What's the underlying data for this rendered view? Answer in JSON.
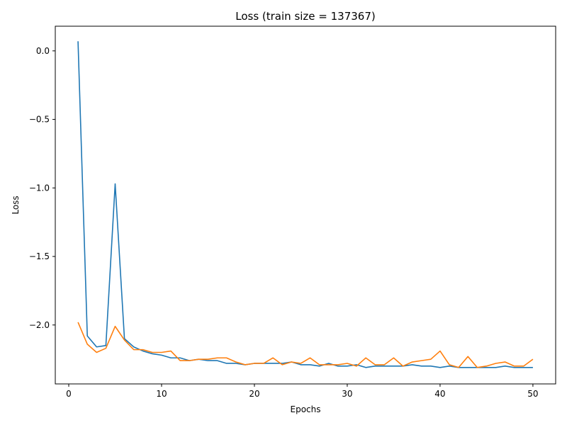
{
  "chart_data": {
    "type": "line",
    "title": "Loss (train size = 137367)",
    "xlabel": "Epochs",
    "ylabel": "Loss",
    "xlim": [
      -1.45,
      52.45
    ],
    "ylim": [
      -2.43,
      0.18
    ],
    "xticks": [
      0,
      10,
      20,
      30,
      40,
      50
    ],
    "yticks": [
      0.0,
      -0.5,
      -1.0,
      -1.5,
      -2.0
    ],
    "ytick_labels": [
      "0.0",
      "−0.5",
      "−1.0",
      "−1.5",
      "−2.0"
    ],
    "grid": false,
    "x": [
      1,
      2,
      3,
      4,
      5,
      6,
      7,
      8,
      9,
      10,
      11,
      12,
      13,
      14,
      15,
      16,
      17,
      18,
      19,
      20,
      21,
      22,
      23,
      24,
      25,
      26,
      27,
      28,
      29,
      30,
      31,
      32,
      33,
      34,
      35,
      36,
      37,
      38,
      39,
      40,
      41,
      42,
      43,
      44,
      45,
      46,
      47,
      48,
      49,
      50
    ],
    "series": [
      {
        "color": "#1f77b4",
        "values": [
          0.07,
          -2.08,
          -2.16,
          -2.15,
          -0.97,
          -2.1,
          -2.16,
          -2.19,
          -2.21,
          -2.22,
          -2.24,
          -2.24,
          -2.26,
          -2.25,
          -2.26,
          -2.26,
          -2.28,
          -2.28,
          -2.29,
          -2.28,
          -2.28,
          -2.28,
          -2.28,
          -2.27,
          -2.29,
          -2.29,
          -2.3,
          -2.28,
          -2.3,
          -2.3,
          -2.29,
          -2.31,
          -2.3,
          -2.3,
          -2.3,
          -2.3,
          -2.29,
          -2.3,
          -2.3,
          -2.31,
          -2.3,
          -2.31,
          -2.31,
          -2.31,
          -2.31,
          -2.31,
          -2.3,
          -2.31,
          -2.31,
          -2.31
        ]
      },
      {
        "color": "#ff7f0e",
        "values": [
          -1.98,
          -2.14,
          -2.2,
          -2.17,
          -2.01,
          -2.11,
          -2.18,
          -2.18,
          -2.2,
          -2.2,
          -2.19,
          -2.26,
          -2.26,
          -2.25,
          -2.25,
          -2.24,
          -2.24,
          -2.27,
          -2.29,
          -2.28,
          -2.28,
          -2.24,
          -2.29,
          -2.27,
          -2.28,
          -2.24,
          -2.29,
          -2.29,
          -2.29,
          -2.28,
          -2.3,
          -2.24,
          -2.29,
          -2.29,
          -2.24,
          -2.3,
          -2.27,
          -2.26,
          -2.25,
          -2.19,
          -2.29,
          -2.31,
          -2.23,
          -2.31,
          -2.3,
          -2.28,
          -2.27,
          -2.3,
          -2.3,
          -2.25
        ]
      }
    ]
  }
}
